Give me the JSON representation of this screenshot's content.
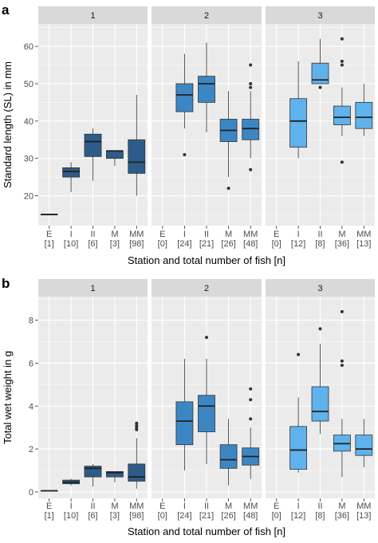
{
  "panel_labels": [
    "a",
    "b"
  ],
  "colors": {
    "panel_bg": "#ebebeb",
    "strip_bg": "#d9d9d9",
    "grid": "#ffffff",
    "outlier": "#333333",
    "station_1": "#2d5c8a",
    "station_2": "#3d86c4",
    "station_3": "#5fb2ec"
  },
  "chart_data": [
    {
      "type": "boxplot",
      "label": "a",
      "ylabel": "Standard length (SL) in mm",
      "xlabel": "Station and total number of fish [n]",
      "ylim": [
        12,
        66
      ],
      "yticks": [
        20,
        30,
        40,
        50,
        60
      ],
      "facets": [
        {
          "title": "1",
          "groups": [
            {
              "category": "E",
              "n": "[1]",
              "stats": {
                "min": 15,
                "q1": 15,
                "median": 15,
                "q3": 15,
                "max": 15
              },
              "outliers": []
            },
            {
              "category": "I",
              "n": "[10]",
              "stats": {
                "min": 21,
                "q1": 25,
                "median": 26.5,
                "q3": 27.5,
                "max": 29
              },
              "outliers": []
            },
            {
              "category": "II",
              "n": "[6]",
              "stats": {
                "min": 24,
                "q1": 30.5,
                "median": 34.5,
                "q3": 36.5,
                "max": 38
              },
              "outliers": []
            },
            {
              "category": "M",
              "n": "[3]",
              "stats": {
                "min": 28,
                "q1": 30,
                "median": 32,
                "q3": 32,
                "max": 32
              },
              "outliers": []
            },
            {
              "category": "MM",
              "n": "[98]",
              "stats": {
                "min": 20,
                "q1": 26,
                "median": 29,
                "q3": 35,
                "max": 47
              },
              "outliers": []
            }
          ]
        },
        {
          "title": "2",
          "groups": [
            {
              "category": "E",
              "n": "[0]",
              "stats": null,
              "outliers": []
            },
            {
              "category": "I",
              "n": "[24]",
              "stats": {
                "min": 38,
                "q1": 42.5,
                "median": 47,
                "q3": 50,
                "max": 58
              },
              "outliers": [
                31
              ]
            },
            {
              "category": "II",
              "n": "[21]",
              "stats": {
                "min": 37,
                "q1": 45,
                "median": 50,
                "q3": 52,
                "max": 61
              },
              "outliers": []
            },
            {
              "category": "M",
              "n": "[26]",
              "stats": {
                "min": 25,
                "q1": 34.5,
                "median": 37.5,
                "q3": 40.5,
                "max": 48
              },
              "outliers": [
                22
              ]
            },
            {
              "category": "MM",
              "n": "[48]",
              "stats": {
                "min": 30,
                "q1": 35,
                "median": 38,
                "q3": 40.5,
                "max": 48
              },
              "outliers": [
                55,
                50,
                49,
                27
              ]
            }
          ]
        },
        {
          "title": "3",
          "groups": [
            {
              "category": "E",
              "n": "[0]",
              "stats": null,
              "outliers": []
            },
            {
              "category": "I",
              "n": "[12]",
              "stats": {
                "min": 30,
                "q1": 33,
                "median": 40,
                "q3": 46,
                "max": 56
              },
              "outliers": []
            },
            {
              "category": "II",
              "n": "[8]",
              "stats": {
                "min": 50,
                "q1": 50,
                "median": 51,
                "q3": 55.5,
                "max": 62
              },
              "outliers": [
                49
              ]
            },
            {
              "category": "M",
              "n": "[36]",
              "stats": {
                "min": 36,
                "q1": 39,
                "median": 41,
                "q3": 44,
                "max": 49
              },
              "outliers": [
                62,
                56,
                55,
                29
              ]
            },
            {
              "category": "MM",
              "n": "[13]",
              "stats": {
                "min": 36,
                "q1": 38,
                "median": 41,
                "q3": 45,
                "max": 50
              },
              "outliers": []
            }
          ]
        }
      ]
    },
    {
      "type": "boxplot",
      "label": "b",
      "ylabel": "Total wet weight in g",
      "xlabel": "Station and total number of fish [n]",
      "ylim": [
        -0.3,
        9.1
      ],
      "yticks": [
        0,
        2,
        4,
        6,
        8
      ],
      "facets": [
        {
          "title": "1",
          "groups": [
            {
              "category": "E",
              "n": "[1]",
              "stats": {
                "min": 0.05,
                "q1": 0.05,
                "median": 0.05,
                "q3": 0.05,
                "max": 0.05
              },
              "outliers": []
            },
            {
              "category": "I",
              "n": "[10]",
              "stats": {
                "min": 0.3,
                "q1": 0.38,
                "median": 0.45,
                "q3": 0.55,
                "max": 0.6
              },
              "outliers": []
            },
            {
              "category": "II",
              "n": "[6]",
              "stats": {
                "min": 0.25,
                "q1": 0.7,
                "median": 1.1,
                "q3": 1.2,
                "max": 1.3
              },
              "outliers": []
            },
            {
              "category": "M",
              "n": "[3]",
              "stats": {
                "min": 0.45,
                "q1": 0.7,
                "median": 0.9,
                "q3": 0.95,
                "max": 0.95
              },
              "outliers": []
            },
            {
              "category": "MM",
              "n": "[98]",
              "stats": {
                "min": 0.15,
                "q1": 0.5,
                "median": 0.7,
                "q3": 1.3,
                "max": 2.5
              },
              "outliers": [
                3.2,
                3.1,
                3.0,
                2.9
              ]
            }
          ]
        },
        {
          "title": "2",
          "groups": [
            {
              "category": "E",
              "n": "[0]",
              "stats": null,
              "outliers": []
            },
            {
              "category": "I",
              "n": "[24]",
              "stats": {
                "min": 1.0,
                "q1": 2.2,
                "median": 3.3,
                "q3": 4.2,
                "max": 6.2
              },
              "outliers": []
            },
            {
              "category": "II",
              "n": "[21]",
              "stats": {
                "min": 1.3,
                "q1": 2.8,
                "median": 4.0,
                "q3": 4.5,
                "max": 6.2
              },
              "outliers": [
                7.2
              ]
            },
            {
              "category": "M",
              "n": "[26]",
              "stats": {
                "min": 0.3,
                "q1": 1.1,
                "median": 1.5,
                "q3": 2.2,
                "max": 3.4
              },
              "outliers": []
            },
            {
              "category": "MM",
              "n": "[48]",
              "stats": {
                "min": 0.6,
                "q1": 1.25,
                "median": 1.65,
                "q3": 2.05,
                "max": 3.0
              },
              "outliers": [
                4.8,
                4.3,
                3.4
              ]
            }
          ]
        },
        {
          "title": "3",
          "groups": [
            {
              "category": "E",
              "n": "[0]",
              "stats": null,
              "outliers": []
            },
            {
              "category": "I",
              "n": "[12]",
              "stats": {
                "min": 0.9,
                "q1": 1.05,
                "median": 1.95,
                "q3": 3.05,
                "max": 4.4
              },
              "outliers": [
                6.4
              ]
            },
            {
              "category": "II",
              "n": "[8]",
              "stats": {
                "min": 2.7,
                "q1": 3.3,
                "median": 3.75,
                "q3": 4.9,
                "max": 6.9
              },
              "outliers": [
                7.6
              ]
            },
            {
              "category": "M",
              "n": "[36]",
              "stats": {
                "min": 0.7,
                "q1": 1.9,
                "median": 2.25,
                "q3": 2.65,
                "max": 3.4
              },
              "outliers": [
                8.4,
                6.1,
                5.9
              ]
            },
            {
              "category": "MM",
              "n": "[13]",
              "stats": {
                "min": 1.15,
                "q1": 1.7,
                "median": 2.0,
                "q3": 2.65,
                "max": 3.4
              },
              "outliers": []
            }
          ]
        }
      ]
    }
  ]
}
